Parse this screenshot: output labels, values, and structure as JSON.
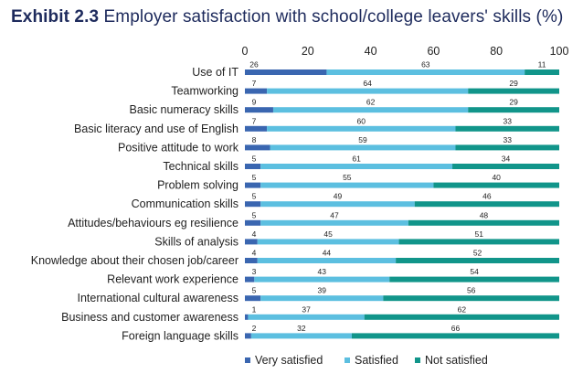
{
  "title": {
    "exhibit": "Exhibit 2.3",
    "text": "Employer satisfaction with school/college leavers' skills (%)"
  },
  "chart_data": {
    "type": "bar",
    "orientation": "horizontal",
    "stacked": true,
    "xlim": [
      0,
      100
    ],
    "xticks": [
      0,
      20,
      40,
      60,
      80,
      100
    ],
    "grid": false,
    "legend_position": "bottom",
    "categories": [
      "Use of IT",
      "Teamworking",
      "Basic numeracy skills",
      "Basic literacy and use of English",
      "Positive attitude to work",
      "Technical skills",
      "Problem solving",
      "Communication skills",
      "Attitudes/behaviours eg resilience",
      "Skills of analysis",
      "Knowledge about their chosen job/career",
      "Relevant work experience",
      "International cultural awareness",
      "Business and customer awareness",
      "Foreign language skills"
    ],
    "series": [
      {
        "name": "Very satisfied",
        "color": "#3a66b0",
        "values": [
          26,
          7,
          9,
          7,
          8,
          5,
          5,
          5,
          5,
          4,
          4,
          3,
          5,
          1,
          2
        ]
      },
      {
        "name": "Satisfied",
        "color": "#5cbfe0",
        "values": [
          63,
          64,
          62,
          60,
          59,
          61,
          55,
          49,
          47,
          45,
          44,
          43,
          39,
          37,
          32
        ]
      },
      {
        "name": "Not satisfied",
        "color": "#11958a",
        "values": [
          11,
          29,
          29,
          33,
          33,
          34,
          40,
          46,
          48,
          51,
          52,
          54,
          56,
          62,
          66
        ]
      }
    ]
  }
}
